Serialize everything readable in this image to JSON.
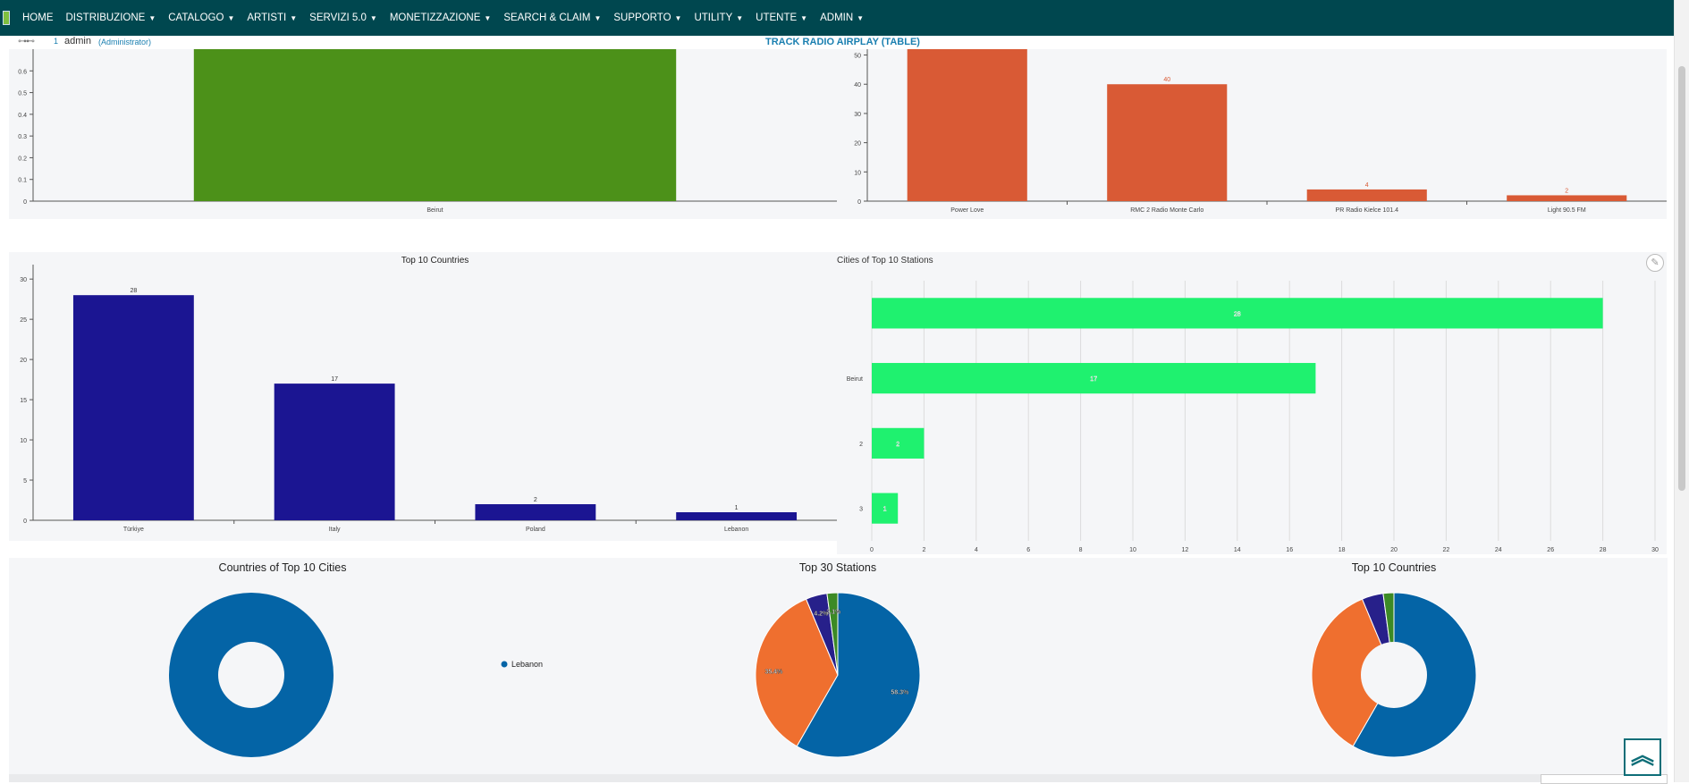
{
  "nav": {
    "items": [
      {
        "label": "HOME",
        "has_menu": false
      },
      {
        "label": "DISTRIBUZIONE",
        "has_menu": true
      },
      {
        "label": "CATALOGO",
        "has_menu": true
      },
      {
        "label": "ARTISTI",
        "has_menu": true
      },
      {
        "label": "SERVIZI 5.0",
        "has_menu": true
      },
      {
        "label": "MONETIZZAZIONE",
        "has_menu": true
      },
      {
        "label": "SEARCH & CLAIM",
        "has_menu": true
      },
      {
        "label": "SUPPORTO",
        "has_menu": true
      },
      {
        "label": "UTILITY",
        "has_menu": true
      },
      {
        "label": "UTENTE",
        "has_menu": true
      },
      {
        "label": "ADMIN",
        "has_menu": true
      }
    ],
    "bg_color": "#00474f"
  },
  "user": {
    "icon": "user-icon",
    "number": "1",
    "name": "admin",
    "role": "(Administrator)"
  },
  "page": {
    "title": "TRACK RADIO AIRPLAY (TABLE)"
  },
  "icons": {
    "edit": "pencil-icon",
    "scroll_top": "double-chevron-up-icon"
  },
  "chart_data": [
    {
      "id": "cities-partial",
      "type": "bar",
      "title": "",
      "categories": [
        "Beirut"
      ],
      "values": [
        0.7
      ],
      "yticks": [
        "0",
        "0.1",
        "0.2",
        "0.3",
        "0.4",
        "0.5",
        "0.6"
      ],
      "ylim": [
        0,
        0.7
      ],
      "color": "#4c9119"
    },
    {
      "id": "stations-partial",
      "type": "bar",
      "title": "",
      "categories": [
        "Power Love",
        "RMC 2 Radio Monte Carlo",
        "PR Radio Kielce 101.4",
        "Light 90.5 FM"
      ],
      "values": [
        52,
        40,
        4,
        2
      ],
      "labels": [
        "",
        "40",
        "4",
        "2"
      ],
      "yticks": [
        "0",
        "10",
        "20",
        "30",
        "40",
        "50"
      ],
      "ylim": [
        0,
        52
      ],
      "color": "#d95a35"
    },
    {
      "id": "top-countries-bar",
      "type": "bar",
      "title": "Top 10 Countries",
      "categories": [
        "Türkiye",
        "Italy",
        "Poland",
        "Lebanon"
      ],
      "values": [
        28,
        17,
        2,
        1
      ],
      "labels": [
        "28",
        "17",
        "2",
        "1"
      ],
      "yticks": [
        "0",
        "5",
        "10",
        "15",
        "20",
        "25",
        "30"
      ],
      "ylim": [
        0,
        31.8
      ],
      "color": "#1b1592"
    },
    {
      "id": "cities-stations-hbar",
      "type": "bar",
      "orientation": "horizontal",
      "title": "Cities of Top 10 Stations",
      "categories": [
        "",
        "Beirut",
        "2",
        "3"
      ],
      "values": [
        28,
        17,
        2,
        1
      ],
      "labels": [
        "28",
        "17",
        "2",
        "1"
      ],
      "xticks": [
        "0",
        "2",
        "4",
        "6",
        "8",
        "10",
        "12",
        "14",
        "16",
        "18",
        "20",
        "22",
        "24",
        "26",
        "28",
        "30"
      ],
      "xlim": [
        0,
        30
      ],
      "grid": true,
      "color": "#1ff16f"
    },
    {
      "id": "countries-cities-donut",
      "type": "pie",
      "donut": true,
      "title": "Countries of Top 10 Cities",
      "series": [
        {
          "name": "Lebanon",
          "value": 100
        }
      ],
      "legend": [
        "Lebanon"
      ],
      "colors": [
        "#0464a6"
      ]
    },
    {
      "id": "top-stations-pie",
      "type": "pie",
      "donut": false,
      "title": "Top 30 Stations",
      "series": [
        {
          "value": 58.3,
          "label": "58.3%"
        },
        {
          "value": 35.4,
          "label": "35.4%"
        },
        {
          "value": 4.2,
          "label": "4.2%"
        },
        {
          "value": 2.1,
          "label": "2.1%"
        }
      ],
      "colors": [
        "#0464a6",
        "#ef6f2f",
        "#27208a",
        "#3c8a25"
      ]
    },
    {
      "id": "top-countries-donut",
      "type": "pie",
      "donut": true,
      "title": "Top 10 Countries",
      "series": [
        {
          "value": 58.3
        },
        {
          "value": 35.4
        },
        {
          "value": 4.2
        },
        {
          "value": 2.1
        }
      ],
      "colors": [
        "#0464a6",
        "#ef6f2f",
        "#27208a",
        "#3c8a25"
      ]
    }
  ]
}
